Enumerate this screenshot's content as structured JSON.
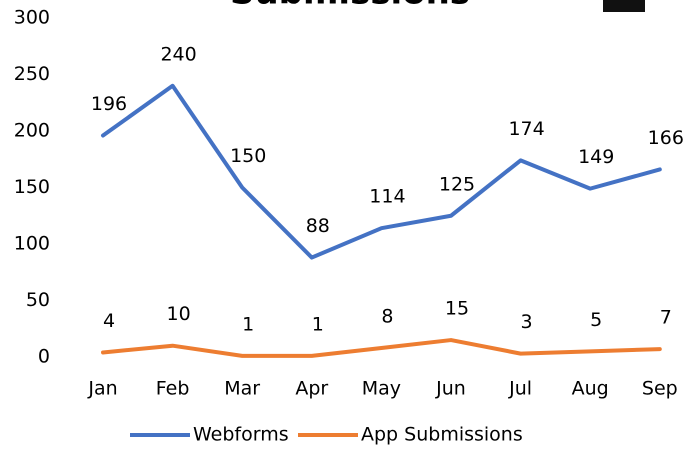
{
  "chart_data": {
    "type": "line",
    "title": "Submissions",
    "categories": [
      "Jan",
      "Feb",
      "Mar",
      "Apr",
      "May",
      "Jun",
      "Jul",
      "Aug",
      "Sep"
    ],
    "series": [
      {
        "name": "Webforms",
        "color": "#4472c4",
        "values": [
          196,
          240,
          150,
          88,
          114,
          125,
          174,
          149,
          166
        ]
      },
      {
        "name": "App Submissions",
        "color": "#ed7d31",
        "values": [
          4,
          10,
          1,
          1,
          8,
          15,
          3,
          5,
          7
        ]
      }
    ],
    "ylim": [
      0,
      300
    ],
    "yticks": [
      0,
      50,
      100,
      150,
      200,
      250,
      300
    ],
    "grid": false,
    "legend": "bottom"
  }
}
